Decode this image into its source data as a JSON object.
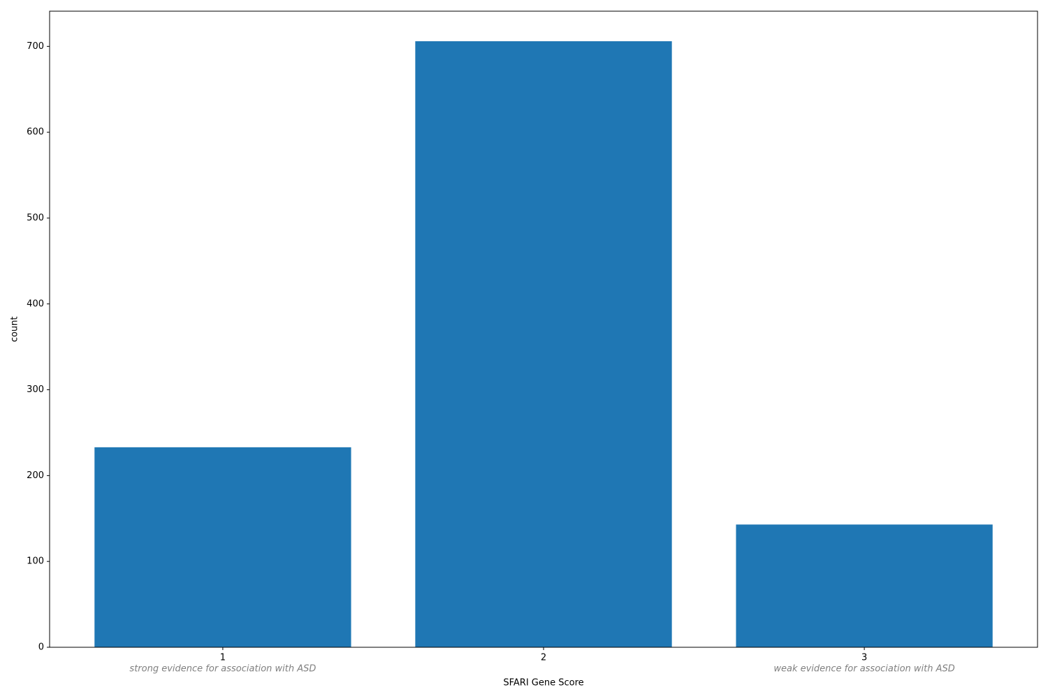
{
  "chart_data": {
    "type": "bar",
    "x_label": "SFARI Gene Score",
    "y_label": "count",
    "x": [
      1,
      2,
      3
    ],
    "values": [
      233,
      706,
      143
    ],
    "color": "#1f77b4",
    "xlim": [
      0.46,
      3.54
    ],
    "xticks": [
      1,
      2,
      3
    ],
    "ylim": [
      0,
      741
    ],
    "yticks": [
      0,
      100,
      200,
      300,
      400,
      500,
      600,
      700
    ],
    "annotations": [
      {
        "x": 1,
        "text": "strong evidence for association with ASD"
      },
      {
        "x": 3,
        "text": "weak evidence for association with ASD"
      }
    ]
  }
}
